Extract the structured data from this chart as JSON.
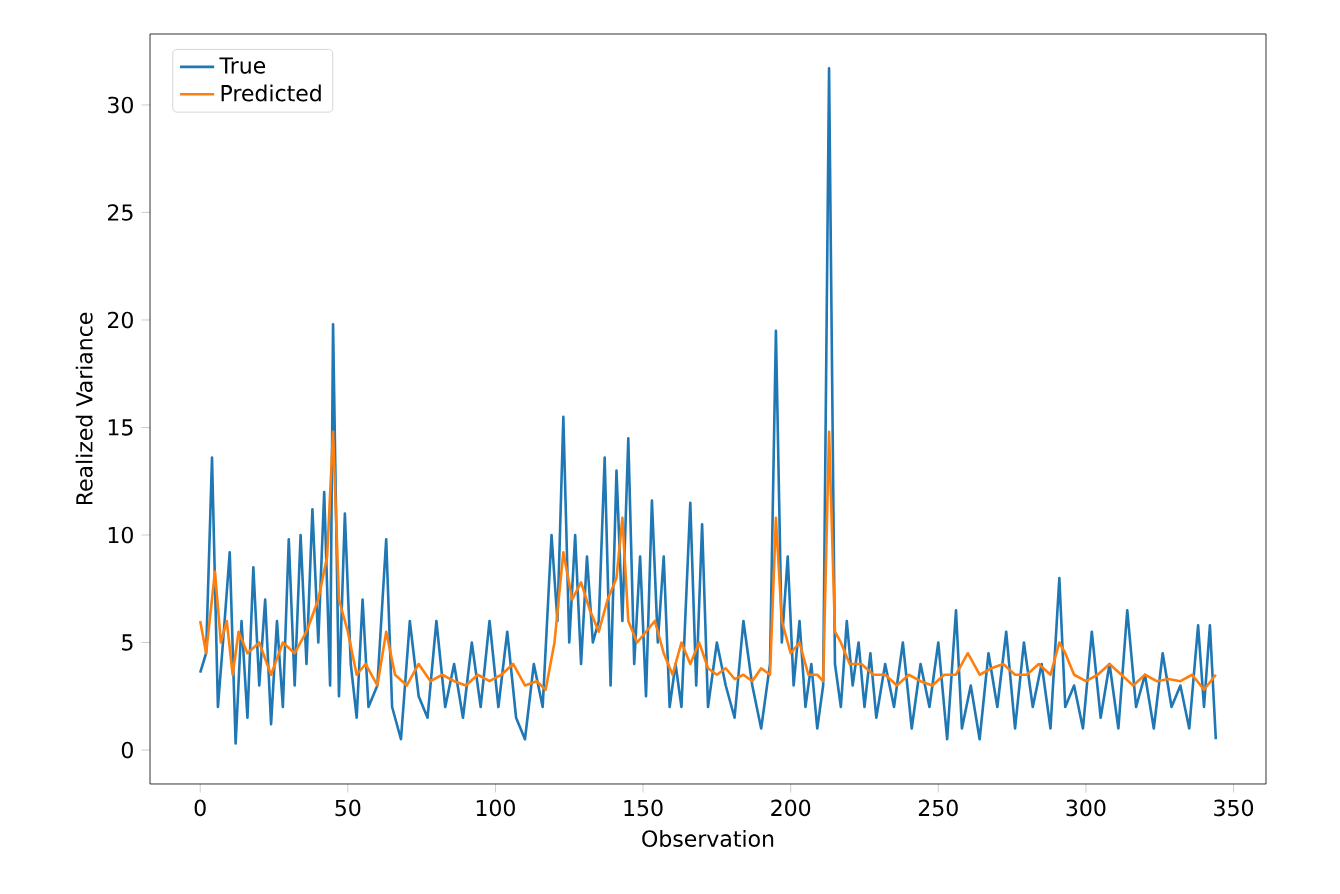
{
  "chart_data": {
    "type": "line",
    "xlabel": "Observation",
    "ylabel": "Realized Variance",
    "xlim": [
      -17,
      361
    ],
    "ylim": [
      -1.58,
      33.3
    ],
    "xticks": [
      0,
      50,
      100,
      150,
      200,
      250,
      300,
      350
    ],
    "yticks": [
      0,
      5,
      10,
      15,
      20,
      25,
      30
    ],
    "legend": "top left",
    "series": [
      {
        "name": "True",
        "color": "#1f77b4",
        "x": [
          0,
          2,
          4,
          6,
          8,
          10,
          12,
          14,
          16,
          18,
          20,
          22,
          24,
          26,
          28,
          30,
          32,
          34,
          36,
          38,
          40,
          42,
          44,
          45,
          47,
          49,
          51,
          53,
          55,
          57,
          60,
          63,
          65,
          68,
          71,
          74,
          77,
          80,
          83,
          86,
          89,
          92,
          95,
          98,
          101,
          104,
          107,
          110,
          113,
          116,
          119,
          121,
          123,
          125,
          127,
          129,
          131,
          133,
          135,
          137,
          139,
          141,
          143,
          145,
          147,
          149,
          151,
          153,
          155,
          157,
          159,
          161,
          163,
          166,
          168,
          170,
          172,
          175,
          178,
          181,
          184,
          187,
          190,
          193,
          195,
          197,
          199,
          201,
          203,
          205,
          207,
          209,
          211,
          213,
          215,
          217,
          219,
          221,
          223,
          225,
          227,
          229,
          232,
          235,
          238,
          241,
          244,
          247,
          250,
          253,
          256,
          258,
          261,
          264,
          267,
          270,
          273,
          276,
          279,
          282,
          285,
          288,
          291,
          293,
          296,
          299,
          302,
          305,
          308,
          311,
          314,
          317,
          320,
          323,
          326,
          329,
          332,
          335,
          338,
          340,
          342,
          344
        ],
        "values": [
          3.6,
          4.5,
          13.6,
          2.0,
          5.5,
          9.2,
          0.3,
          6,
          1.5,
          8.5,
          3,
          7,
          1.2,
          6,
          2,
          9.8,
          3,
          10.0,
          4,
          11.2,
          5,
          12.0,
          3,
          19.8,
          2.5,
          11,
          4,
          1.5,
          7,
          2,
          3,
          9.8,
          2,
          0.5,
          6,
          2.5,
          1.5,
          6,
          2,
          4,
          1.5,
          5,
          2,
          6,
          2.0,
          5.5,
          1.5,
          0.5,
          4,
          2,
          10.0,
          6,
          15.5,
          5,
          10,
          4,
          9,
          5,
          6,
          13.6,
          3,
          13,
          6,
          14.5,
          4,
          9,
          2.5,
          11.6,
          5,
          9,
          2,
          4,
          2,
          11.5,
          3,
          10.5,
          2,
          5,
          3,
          1.5,
          6,
          3,
          1,
          4,
          19.5,
          5,
          9,
          3,
          6,
          2,
          4,
          1,
          3,
          31.7,
          4,
          2,
          6,
          3,
          5,
          2,
          4.5,
          1.5,
          4,
          2,
          5,
          1,
          4,
          2,
          5,
          0.5,
          6.5,
          1,
          3,
          0.5,
          4.5,
          2,
          5.5,
          1,
          5,
          2,
          4,
          1,
          8.0,
          2,
          3,
          1,
          5.5,
          1.5,
          4,
          1,
          6.5,
          2,
          3.5,
          1,
          4.5,
          2,
          3,
          1,
          5.8,
          2,
          5.8,
          0.5
        ]
      },
      {
        "name": "Predicted",
        "color": "#ff7f0e",
        "x": [
          0,
          2,
          5,
          7,
          9,
          11,
          13,
          16,
          20,
          24,
          28,
          32,
          36,
          40,
          43,
          45,
          47,
          50,
          53,
          56,
          60,
          63,
          66,
          70,
          74,
          78,
          82,
          86,
          90,
          94,
          98,
          102,
          106,
          110,
          114,
          117,
          120,
          123,
          126,
          129,
          132,
          135,
          138,
          141,
          143,
          145,
          148,
          151,
          154,
          157,
          160,
          163,
          166,
          169,
          172,
          175,
          178,
          181,
          184,
          187,
          190,
          193,
          195,
          197,
          200,
          203,
          206,
          209,
          211,
          213,
          215,
          217,
          220,
          224,
          228,
          232,
          236,
          240,
          244,
          248,
          252,
          256,
          260,
          264,
          268,
          272,
          276,
          280,
          284,
          288,
          291,
          293,
          296,
          300,
          304,
          308,
          312,
          316,
          320,
          324,
          328,
          332,
          336,
          340,
          344
        ],
        "values": [
          6,
          4.5,
          8.3,
          5,
          6,
          3.5,
          5.5,
          4.5,
          5,
          3.5,
          5,
          4.5,
          5.5,
          7,
          9,
          14.8,
          7,
          5.5,
          3.5,
          4,
          3,
          5.5,
          3.5,
          3,
          4,
          3.2,
          3.5,
          3.2,
          3,
          3.5,
          3.2,
          3.5,
          4,
          3,
          3.2,
          2.8,
          5,
          9.2,
          7,
          7.8,
          6.5,
          5.5,
          7,
          8,
          10.8,
          6,
          5,
          5.5,
          6,
          4.5,
          3.5,
          5,
          4,
          5,
          3.8,
          3.5,
          3.8,
          3.3,
          3.5,
          3.2,
          3.8,
          3.5,
          10.8,
          6,
          4.5,
          5,
          3.5,
          3.5,
          3.2,
          14.8,
          5.5,
          5,
          4,
          4,
          3.5,
          3.5,
          3,
          3.5,
          3.2,
          3,
          3.5,
          3.5,
          4.5,
          3.5,
          3.8,
          4,
          3.5,
          3.5,
          4,
          3.5,
          5,
          4.5,
          3.5,
          3.2,
          3.5,
          4,
          3.5,
          3,
          3.5,
          3.2,
          3.3,
          3.2,
          3.5,
          2.8,
          3.5
        ]
      }
    ]
  }
}
